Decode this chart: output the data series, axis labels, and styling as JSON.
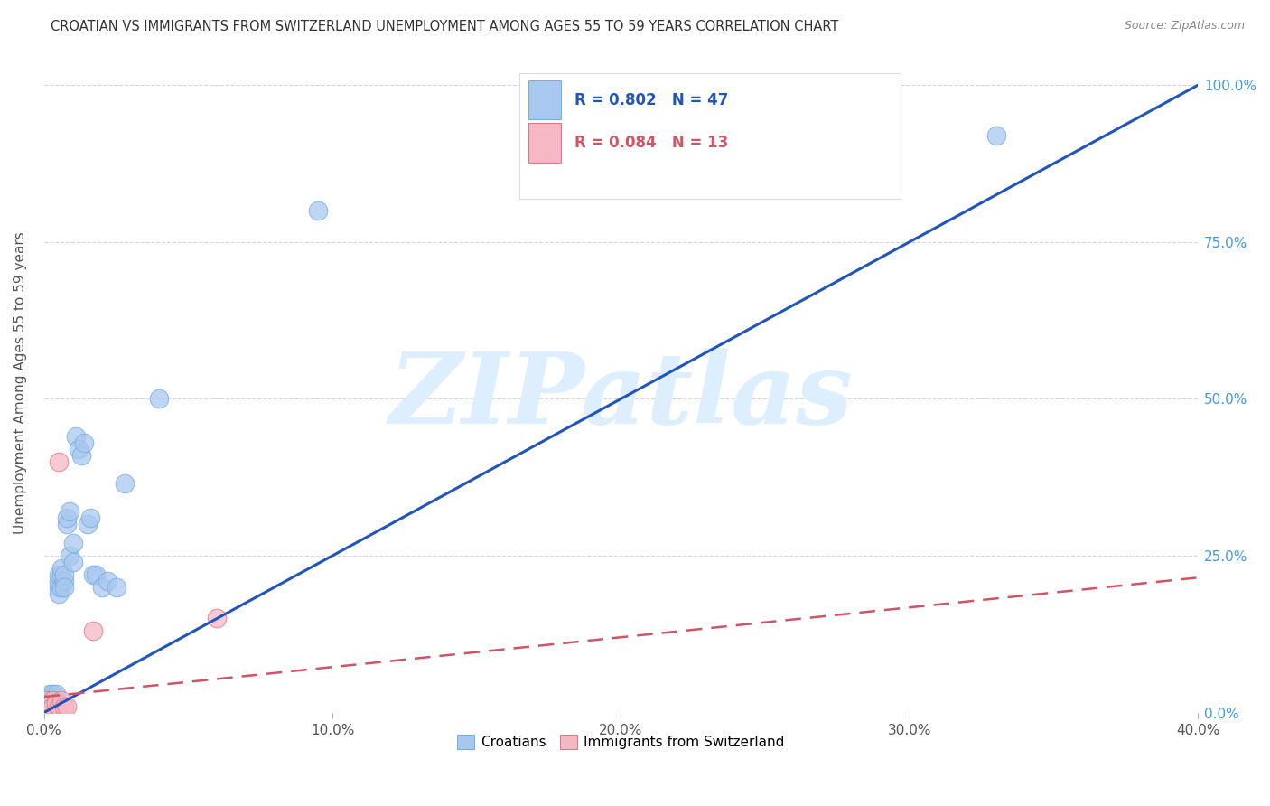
{
  "title": "CROATIAN VS IMMIGRANTS FROM SWITZERLAND UNEMPLOYMENT AMONG AGES 55 TO 59 YEARS CORRELATION CHART",
  "source": "Source: ZipAtlas.com",
  "ylabel": "Unemployment Among Ages 55 to 59 years",
  "xlim": [
    0.0,
    0.4
  ],
  "ylim": [
    0.0,
    1.05
  ],
  "blue_R": 0.802,
  "blue_N": 47,
  "pink_R": 0.084,
  "pink_N": 13,
  "blue_color": "#a8c8f0",
  "blue_edge_color": "#7aaedd",
  "blue_line_color": "#2255bb",
  "pink_color": "#f5b8c4",
  "pink_edge_color": "#e07888",
  "pink_line_color": "#cc5566",
  "watermark": "ZIPatlas",
  "watermark_color": "#ddeeff",
  "blue_scatter_x": [
    0.001,
    0.001,
    0.001,
    0.002,
    0.002,
    0.002,
    0.002,
    0.003,
    0.003,
    0.003,
    0.003,
    0.004,
    0.004,
    0.004,
    0.004,
    0.005,
    0.005,
    0.005,
    0.005,
    0.006,
    0.006,
    0.006,
    0.007,
    0.007,
    0.007,
    0.008,
    0.008,
    0.009,
    0.009,
    0.01,
    0.01,
    0.011,
    0.012,
    0.013,
    0.014,
    0.015,
    0.016,
    0.017,
    0.018,
    0.02,
    0.022,
    0.025,
    0.028,
    0.04,
    0.095,
    0.24,
    0.33
  ],
  "blue_scatter_y": [
    0.01,
    0.02,
    0.015,
    0.01,
    0.02,
    0.03,
    0.01,
    0.02,
    0.03,
    0.015,
    0.01,
    0.02,
    0.015,
    0.03,
    0.01,
    0.2,
    0.21,
    0.22,
    0.19,
    0.22,
    0.23,
    0.2,
    0.21,
    0.22,
    0.2,
    0.3,
    0.31,
    0.32,
    0.25,
    0.24,
    0.27,
    0.44,
    0.42,
    0.41,
    0.43,
    0.3,
    0.31,
    0.22,
    0.22,
    0.2,
    0.21,
    0.2,
    0.365,
    0.5,
    0.8,
    1.0,
    0.92
  ],
  "pink_scatter_x": [
    0.001,
    0.001,
    0.002,
    0.003,
    0.003,
    0.004,
    0.005,
    0.005,
    0.006,
    0.007,
    0.008,
    0.017,
    0.06
  ],
  "pink_scatter_y": [
    0.01,
    0.02,
    0.015,
    0.02,
    0.01,
    0.015,
    0.4,
    0.01,
    0.02,
    0.01,
    0.01,
    0.13,
    0.15
  ],
  "blue_line_x": [
    0.0,
    0.42
  ],
  "blue_line_y": [
    0.0,
    1.05
  ],
  "pink_line_x": [
    0.0,
    0.4
  ],
  "pink_line_y": [
    0.025,
    0.215
  ],
  "x_tick_vals": [
    0.0,
    0.1,
    0.2,
    0.3,
    0.4
  ],
  "x_tick_labels": [
    "0.0%",
    "10.0%",
    "20.0%",
    "30.0%",
    "40.0%"
  ],
  "y_tick_vals": [
    0.0,
    0.25,
    0.5,
    0.75,
    1.0
  ],
  "y_tick_labels": [
    "0.0%",
    "25.0%",
    "50.0%",
    "75.0%",
    "100.0%"
  ]
}
